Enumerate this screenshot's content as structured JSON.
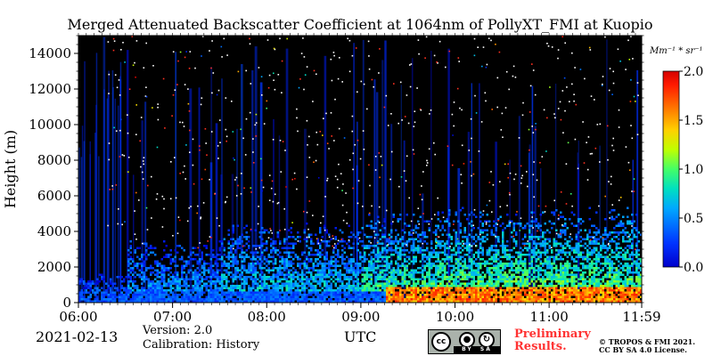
{
  "chart_data": {
    "type": "heatmap",
    "title": "Merged Attenuated Backscatter Coefficient at 1064nm of PollyXT_FMI at Kuopio",
    "ylabel": "Height (m)",
    "xlabel": "UTC",
    "x_ticks": [
      "06:00",
      "07:00",
      "08:00",
      "09:00",
      "10:00",
      "11:00",
      "11:59"
    ],
    "x_range_hours": [
      6.0,
      11.9833
    ],
    "y_ticks": [
      0,
      2000,
      4000,
      6000,
      8000,
      10000,
      12000,
      14000
    ],
    "ylim": [
      0,
      15000
    ],
    "colorbar": {
      "unit_label": "Mm⁻¹ * sr⁻¹",
      "ticks": [
        "0.0",
        "0.5",
        "1.0",
        "1.5",
        "2.0"
      ],
      "range": [
        0.0,
        2.0
      ],
      "colormap": "jet"
    },
    "background": "#000000",
    "regions": [
      {
        "start_h": 6.0,
        "end_h": 6.5,
        "top_m": 1200,
        "level": 0.35
      },
      {
        "start_h": 6.5,
        "end_h": 7.5,
        "top_m": 2500,
        "level": 0.55
      },
      {
        "start_h": 7.5,
        "end_h": 9.0,
        "top_m": 3200,
        "level": 0.7
      },
      {
        "start_h": 9.0,
        "end_h": 9.8,
        "top_m": 3600,
        "level": 0.95
      },
      {
        "start_h": 9.8,
        "end_h": 11.983,
        "top_m": 3800,
        "level": 1.05
      }
    ],
    "low_layer": {
      "start_h": 9.25,
      "end_h": 11.983,
      "top_m": 1000,
      "level": 1.6
    }
  },
  "footer": {
    "date": "2021-02-13",
    "version": "Version: 2.0",
    "calibration": "Calibration: History",
    "utc_label": "UTC",
    "preliminary_line1": "Preliminary",
    "preliminary_line2": "Results.",
    "copyright_line1": "© TROPOS & FMI 2021.",
    "copyright_line2": "CC BY SA 4.0 License.",
    "license_badge": {
      "cc": "cc",
      "by": "BY",
      "sa": "SA"
    }
  },
  "colors": {
    "background": "#000000",
    "preliminary": "#ff3333"
  }
}
